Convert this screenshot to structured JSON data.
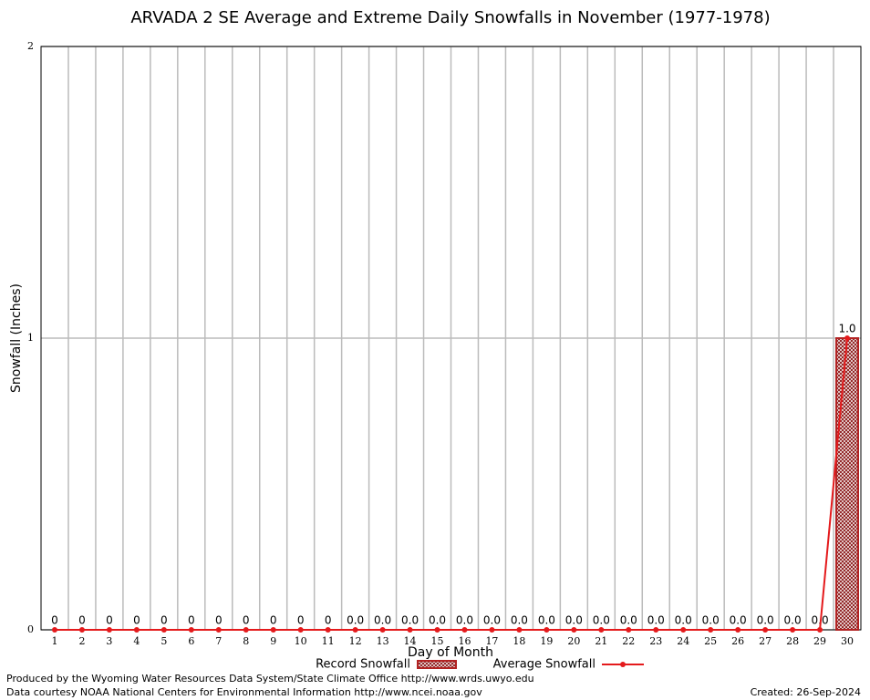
{
  "chart_data": {
    "type": "bar",
    "title": "ARVADA 2 SE Average and Extreme Daily Snowfalls in November (1977-1978)",
    "xlabel": "Day of Month",
    "ylabel": "Snowfall (Inches)",
    "categories": [
      "1",
      "2",
      "3",
      "4",
      "5",
      "6",
      "7",
      "8",
      "9",
      "10",
      "11",
      "12",
      "13",
      "14",
      "15",
      "16",
      "17",
      "18",
      "19",
      "20",
      "21",
      "22",
      "23",
      "24",
      "25",
      "26",
      "27",
      "28",
      "29",
      "30"
    ],
    "series": [
      {
        "name": "Record Snowfall",
        "color": "#b22222",
        "type": "bar",
        "values": [
          0,
          0,
          0,
          0,
          0,
          0,
          0,
          0,
          0,
          0,
          0,
          0,
          0,
          0,
          0,
          0,
          0,
          0,
          0,
          0,
          0,
          0,
          0,
          0,
          0,
          0,
          0,
          0,
          0,
          1
        ],
        "value_labels": [
          "0",
          "0",
          "0",
          "0",
          "0",
          "0",
          "0",
          "0",
          "0",
          "0",
          "0",
          "0.0",
          "0.0",
          "0.0",
          "0.0",
          "0.0",
          "0.0",
          "0.0",
          "0.0",
          "0.0",
          "0.0",
          "0.0",
          "0.0",
          "0.0",
          "0.0",
          "0.0",
          "0.0",
          "0.0",
          "0.0",
          "1.0"
        ]
      },
      {
        "name": "Average Snowfall",
        "color": "#e41a1c",
        "type": "line",
        "values": [
          0,
          0,
          0,
          0,
          0,
          0,
          0,
          0,
          0,
          0,
          0,
          0,
          0,
          0,
          0,
          0,
          0,
          0,
          0,
          0,
          0,
          0,
          0,
          0,
          0,
          0,
          0,
          0,
          0,
          1
        ]
      }
    ],
    "ylim": [
      0,
      2
    ],
    "yticks": [
      0,
      1,
      2
    ],
    "grid": true,
    "footer_left": [
      "Produced by the Wyoming Water Resources Data System/State Climate Office http://www.wrds.uwyo.edu",
      "Data courtesy NOAA National Centers for Environmental Information http://www.ncei.noaa.gov"
    ],
    "footer_right": "Created:  26-Sep-2024"
  }
}
